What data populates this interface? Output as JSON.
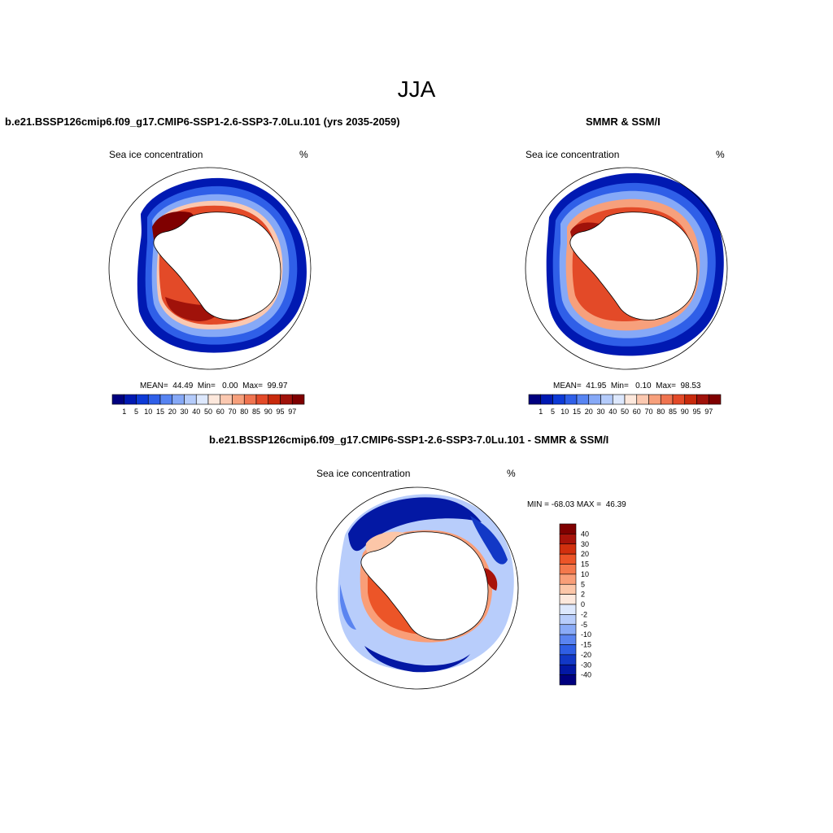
{
  "figure_title": "JJA",
  "panels": [
    {
      "title": "b.e21.BSSP126cmip6.f09_g17.CMIP6-SSP1-2.6-SSP3-7.0Lu.101 (yrs 2035-2059)",
      "variable": "Sea ice concentration",
      "units": "%",
      "stats": "MEAN=  44.49  Min=   0.00  Max=  99.97"
    },
    {
      "title": "SMMR & SSM/I",
      "variable": "Sea ice concentration",
      "units": "%",
      "stats": "MEAN=  41.95  Min=   0.10  Max=  98.53"
    },
    {
      "title": "b.e21.BSSP126cmip6.f09_g17.CMIP6-SSP1-2.6-SSP3-7.0Lu.101 - SMMR & SSM/I",
      "variable": "Sea ice concentration",
      "units": "%",
      "stats": "MIN = -68.03 MAX =  46.39"
    }
  ],
  "colorbar_abs": {
    "labels": [
      "1",
      "5",
      "10",
      "15",
      "20",
      "30",
      "40",
      "50",
      "60",
      "70",
      "80",
      "85",
      "90",
      "95",
      "97"
    ],
    "colors": [
      "#00007f",
      "#0019b2",
      "#0d3ad6",
      "#2f5fe8",
      "#5784f2",
      "#86a9f7",
      "#b4cbfb",
      "#dde8fd",
      "#fde8dc",
      "#fbc8b0",
      "#f7a07c",
      "#f07450",
      "#e34a28",
      "#c82a0c",
      "#a0120a",
      "#7f0000"
    ]
  },
  "colorbar_diff": {
    "labels": [
      "40",
      "30",
      "20",
      "15",
      "10",
      "5",
      "2",
      "0",
      "-2",
      "-5",
      "-10",
      "-15",
      "-20",
      "-30",
      "-40"
    ],
    "colors": [
      "#7f0000",
      "#a8130a",
      "#d2300e",
      "#ec5528",
      "#f4784c",
      "#f99e78",
      "#fcc6a8",
      "#fde8dc",
      "#dde8fd",
      "#b8cdfb",
      "#8aabf7",
      "#5a84f0",
      "#2f5ee4",
      "#1238c6",
      "#0318a4",
      "#00007f"
    ]
  }
}
